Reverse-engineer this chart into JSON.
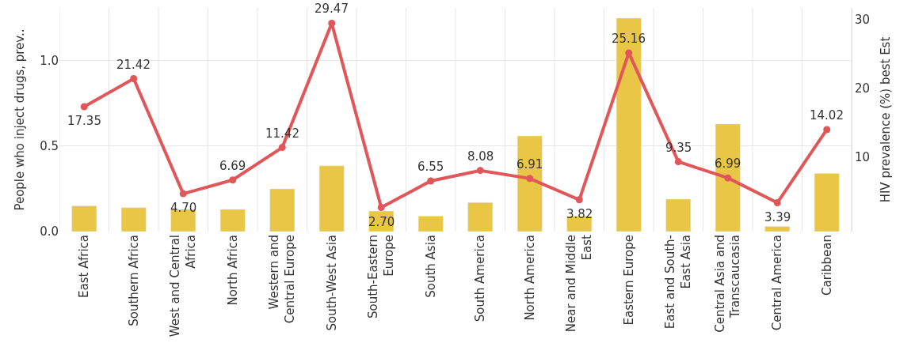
{
  "chart_data": {
    "type": "bar",
    "ylabel": "People who inject drugs, prev..",
    "y2label": "HIV prevalence (%) best Est",
    "categories": [
      "East Africa",
      "Southern Africa",
      "West and Central Africa",
      "North Africa",
      "Western and Central Europe",
      "South-West Asia",
      "South-Eastern Europe",
      "South Asia",
      "South America",
      "North America",
      "Near and Middle East",
      "Eastern Europe",
      "East and South-East Asia",
      "Central Asia and Transcaucasia",
      "Central America",
      "Caribbean"
    ],
    "series": [
      {
        "color": "#e9c646",
        "values": [
          0.15,
          0.14,
          0.13,
          0.13,
          0.25,
          0.385,
          0.12,
          0.09,
          0.17,
          0.56,
          0.09,
          1.25,
          0.19,
          0.63,
          0.03,
          0.34
        ]
      },
      {
        "type": "line",
        "axis": "y2",
        "color": "#e15759",
        "marker": "circle",
        "values": [
          17.35,
          21.42,
          4.7,
          6.69,
          11.42,
          29.47,
          2.7,
          6.55,
          8.08,
          6.91,
          3.82,
          25.16,
          9.35,
          6.99,
          3.39,
          14.02
        ],
        "value_labels": [
          "17.35",
          "21.42",
          "4.70",
          "6.69",
          "11.42",
          "29.47",
          "2.70",
          "6.55",
          "8.08",
          "6.91",
          "3.82",
          "25.16",
          "9.35",
          "6.99",
          "3.39",
          "14.02"
        ]
      }
    ],
    "ylim": [
      0,
      1.31
    ],
    "yticks": [
      {
        "value": 0,
        "label": "0.0"
      },
      {
        "value": 0.5,
        "label": "0.5"
      },
      {
        "value": 1,
        "label": "1.0"
      }
    ],
    "y2lim": [
      -0.8,
      31.7
    ],
    "y2ticks": [
      10,
      20,
      30
    ],
    "grid": true
  }
}
